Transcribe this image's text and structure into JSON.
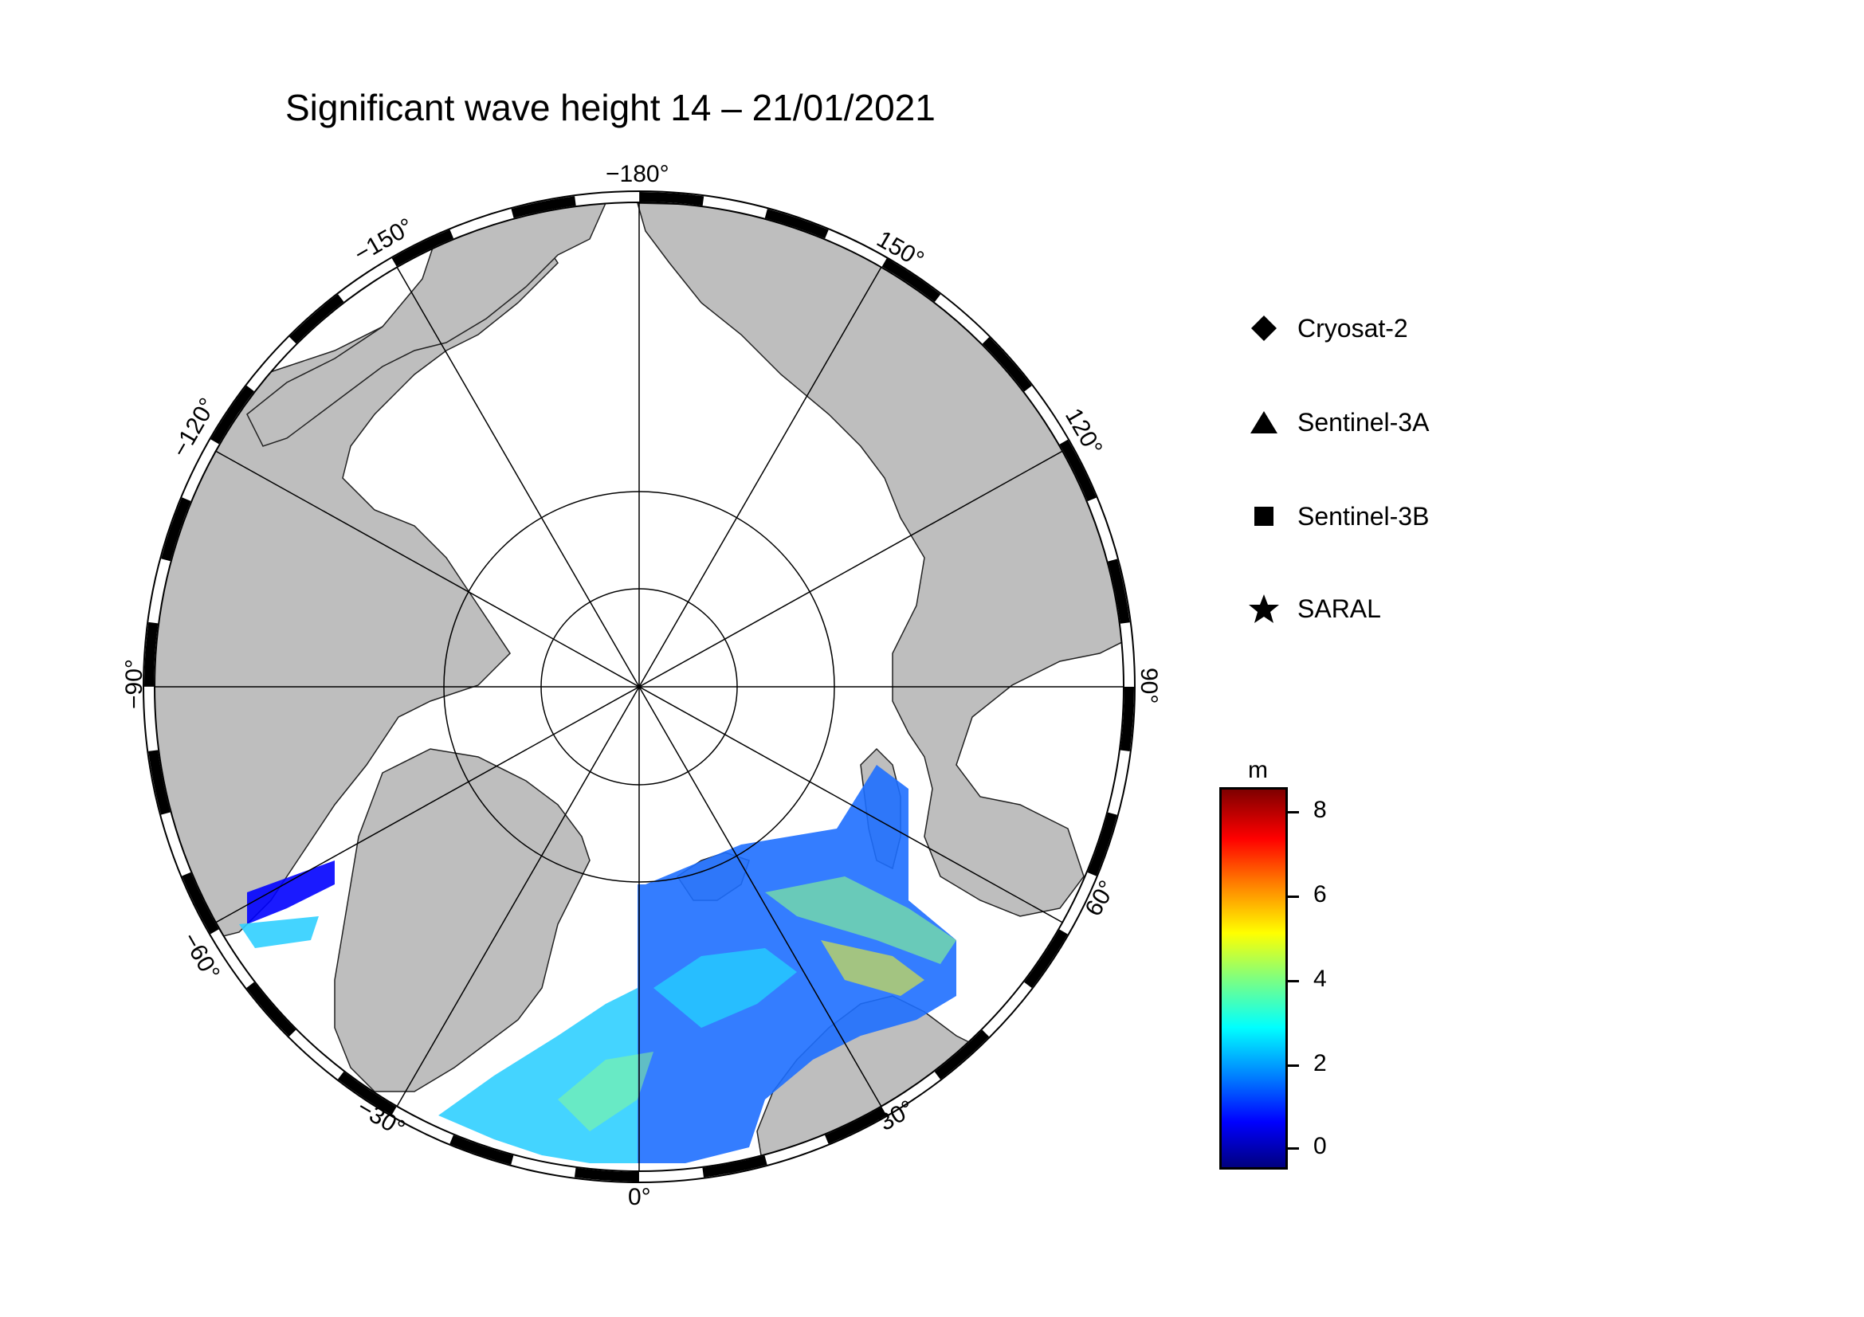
{
  "title": "Significant wave height 14 – 21/01/2021",
  "longitude_labels": {
    "l_m180": "−180°",
    "l_150": "150°",
    "l_m150": "−150°",
    "l_120": "120°",
    "l_m120": "−120°",
    "l_90": "90°",
    "l_m90": "−90°",
    "l_60": "60°",
    "l_m60": "−60°",
    "l_30": "30°",
    "l_m30": "−30°",
    "l_0": "0°"
  },
  "legend": [
    {
      "label": "Cryosat-2",
      "symbol": "diamond-icon"
    },
    {
      "label": "Sentinel-3A",
      "symbol": "triangle-icon"
    },
    {
      "label": "Sentinel-3B",
      "symbol": "square-icon"
    },
    {
      "label": "SARAL",
      "symbol": "star-icon"
    }
  ],
  "colorbar": {
    "unit": "m",
    "ticks": [
      "8",
      "6",
      "4",
      "2",
      "0"
    ],
    "range": [
      -0.5,
      8.5
    ],
    "colormap": "jet"
  },
  "colors": {
    "land": "#bebebe",
    "ocean_ice": "#ffffff",
    "frame": "#000000"
  }
}
